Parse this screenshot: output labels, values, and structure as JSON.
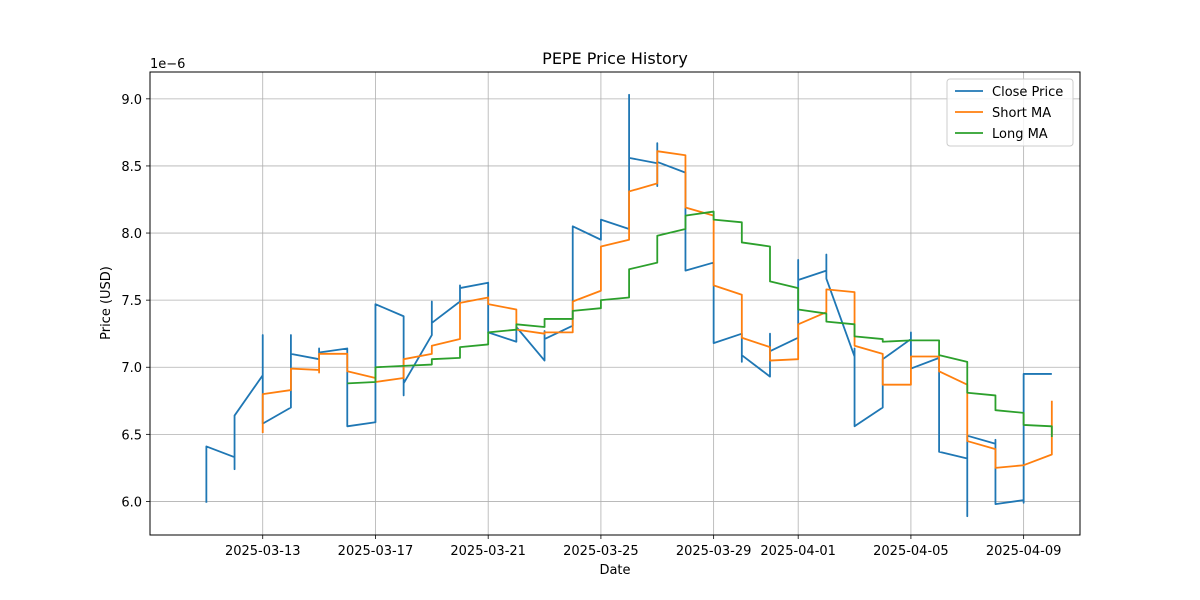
{
  "chart_data": {
    "type": "line",
    "title": "PEPE Price History",
    "xlabel": "Date",
    "ylabel": "Price (USD)",
    "y_scale_label": "1e−6",
    "xlim": [
      "2025-03-09",
      "2025-04-11"
    ],
    "ylim": [
      5.75,
      9.2
    ],
    "x_ticks": [
      "2025-03-13",
      "2025-03-17",
      "2025-03-21",
      "2025-03-25",
      "2025-03-29",
      "2025-04-01",
      "2025-04-05",
      "2025-04-09"
    ],
    "y_ticks": [
      6.0,
      6.5,
      7.0,
      7.5,
      8.0,
      8.5,
      9.0
    ],
    "y_tick_labels": [
      "6.0",
      "6.5",
      "7.0",
      "7.5",
      "8.0",
      "8.5",
      "9.0"
    ],
    "grid": true,
    "legend_position": "top-right",
    "series": [
      {
        "name": "Close Price",
        "color": "#1f77b4",
        "points": [
          [
            "2025-03-11",
            5.99
          ],
          [
            "2025-03-11",
            6.41
          ],
          [
            "2025-03-12",
            6.33
          ],
          [
            "2025-03-12",
            6.24
          ],
          [
            "2025-03-12",
            6.64
          ],
          [
            "2025-03-13",
            6.94
          ],
          [
            "2025-03-13",
            7.24
          ],
          [
            "2025-03-13",
            6.58
          ],
          [
            "2025-03-14",
            6.7
          ],
          [
            "2025-03-14",
            7.24
          ],
          [
            "2025-03-14",
            7.1
          ],
          [
            "2025-03-15",
            7.06
          ],
          [
            "2025-03-15",
            7.14
          ],
          [
            "2025-03-15",
            7.11
          ],
          [
            "2025-03-16",
            7.14
          ],
          [
            "2025-03-16",
            6.56
          ],
          [
            "2025-03-17",
            6.59
          ],
          [
            "2025-03-17",
            7.47
          ],
          [
            "2025-03-18",
            7.38
          ],
          [
            "2025-03-18",
            6.79
          ],
          [
            "2025-03-18",
            6.88
          ],
          [
            "2025-03-19",
            7.24
          ],
          [
            "2025-03-19",
            7.49
          ],
          [
            "2025-03-19",
            7.33
          ],
          [
            "2025-03-20",
            7.49
          ],
          [
            "2025-03-20",
            7.61
          ],
          [
            "2025-03-20",
            7.59
          ],
          [
            "2025-03-21",
            7.63
          ],
          [
            "2025-03-21",
            7.26
          ],
          [
            "2025-03-22",
            7.19
          ],
          [
            "2025-03-22",
            7.3
          ],
          [
            "2025-03-23",
            7.05
          ],
          [
            "2025-03-23",
            7.27
          ],
          [
            "2025-03-23",
            7.21
          ],
          [
            "2025-03-24",
            7.31
          ],
          [
            "2025-03-24",
            8.05
          ],
          [
            "2025-03-25",
            7.95
          ],
          [
            "2025-03-25",
            8.1
          ],
          [
            "2025-03-26",
            8.03
          ],
          [
            "2025-03-26",
            9.03
          ],
          [
            "2025-03-26",
            8.56
          ],
          [
            "2025-03-27",
            8.52
          ],
          [
            "2025-03-27",
            8.35
          ],
          [
            "2025-03-27",
            8.67
          ],
          [
            "2025-03-27",
            8.53
          ],
          [
            "2025-03-28",
            8.45
          ],
          [
            "2025-03-28",
            7.72
          ],
          [
            "2025-03-29",
            7.78
          ],
          [
            "2025-03-29",
            7.18
          ],
          [
            "2025-03-30",
            7.25
          ],
          [
            "2025-03-30",
            7.04
          ],
          [
            "2025-03-30",
            7.09
          ],
          [
            "2025-03-31",
            6.93
          ],
          [
            "2025-03-31",
            7.25
          ],
          [
            "2025-03-31",
            7.12
          ],
          [
            "2025-04-01",
            7.22
          ],
          [
            "2025-04-01",
            7.8
          ],
          [
            "2025-04-01",
            7.65
          ],
          [
            "2025-04-02",
            7.72
          ],
          [
            "2025-04-02",
            7.84
          ],
          [
            "2025-04-02",
            7.66
          ],
          [
            "2025-04-03",
            7.08
          ],
          [
            "2025-04-03",
            7.14
          ],
          [
            "2025-04-03",
            6.56
          ],
          [
            "2025-04-04",
            6.7
          ],
          [
            "2025-04-04",
            7.06
          ],
          [
            "2025-04-05",
            7.21
          ],
          [
            "2025-04-05",
            7.26
          ],
          [
            "2025-04-05",
            6.99
          ],
          [
            "2025-04-06",
            7.07
          ],
          [
            "2025-04-06",
            6.37
          ],
          [
            "2025-04-07",
            6.32
          ],
          [
            "2025-04-07",
            5.89
          ],
          [
            "2025-04-07",
            6.49
          ],
          [
            "2025-04-08",
            6.43
          ],
          [
            "2025-04-08",
            6.46
          ],
          [
            "2025-04-08",
            5.98
          ],
          [
            "2025-04-09",
            6.01
          ],
          [
            "2025-04-09",
            5.99
          ],
          [
            "2025-04-09",
            6.95
          ],
          [
            "2025-04-10",
            6.95
          ]
        ]
      },
      {
        "name": "Short MA",
        "color": "#ff7f0e",
        "points": [
          [
            "2025-03-13",
            6.51
          ],
          [
            "2025-03-13",
            6.8
          ],
          [
            "2025-03-14",
            6.83
          ],
          [
            "2025-03-14",
            6.99
          ],
          [
            "2025-03-15",
            6.98
          ],
          [
            "2025-03-15",
            6.96
          ],
          [
            "2025-03-15",
            7.1
          ],
          [
            "2025-03-16",
            7.1
          ],
          [
            "2025-03-16",
            6.97
          ],
          [
            "2025-03-17",
            6.92
          ],
          [
            "2025-03-17",
            6.89
          ],
          [
            "2025-03-18",
            6.92
          ],
          [
            "2025-03-18",
            7.06
          ],
          [
            "2025-03-19",
            7.1
          ],
          [
            "2025-03-19",
            7.16
          ],
          [
            "2025-03-20",
            7.21
          ],
          [
            "2025-03-20",
            7.48
          ],
          [
            "2025-03-21",
            7.52
          ],
          [
            "2025-03-21",
            7.47
          ],
          [
            "2025-03-22",
            7.43
          ],
          [
            "2025-03-22",
            7.28
          ],
          [
            "2025-03-23",
            7.25
          ],
          [
            "2025-03-23",
            7.26
          ],
          [
            "2025-03-24",
            7.26
          ],
          [
            "2025-03-24",
            7.49
          ],
          [
            "2025-03-25",
            7.57
          ],
          [
            "2025-03-25",
            7.9
          ],
          [
            "2025-03-26",
            7.95
          ],
          [
            "2025-03-26",
            8.31
          ],
          [
            "2025-03-27",
            8.37
          ],
          [
            "2025-03-27",
            8.61
          ],
          [
            "2025-03-28",
            8.58
          ],
          [
            "2025-03-28",
            8.19
          ],
          [
            "2025-03-29",
            8.13
          ],
          [
            "2025-03-29",
            7.61
          ],
          [
            "2025-03-30",
            7.54
          ],
          [
            "2025-03-30",
            7.22
          ],
          [
            "2025-03-31",
            7.15
          ],
          [
            "2025-03-31",
            7.05
          ],
          [
            "2025-04-01",
            7.06
          ],
          [
            "2025-04-01",
            7.32
          ],
          [
            "2025-04-02",
            7.41
          ],
          [
            "2025-04-02",
            7.58
          ],
          [
            "2025-04-03",
            7.56
          ],
          [
            "2025-04-03",
            7.16
          ],
          [
            "2025-04-04",
            7.1
          ],
          [
            "2025-04-04",
            6.87
          ],
          [
            "2025-04-05",
            6.87
          ],
          [
            "2025-04-05",
            7.08
          ],
          [
            "2025-04-06",
            7.08
          ],
          [
            "2025-04-06",
            6.97
          ],
          [
            "2025-04-07",
            6.87
          ],
          [
            "2025-04-07",
            6.45
          ],
          [
            "2025-04-08",
            6.39
          ],
          [
            "2025-04-08",
            6.25
          ],
          [
            "2025-04-09",
            6.27
          ],
          [
            "2025-04-09",
            6.27
          ],
          [
            "2025-04-10",
            6.35
          ],
          [
            "2025-04-10",
            6.75
          ]
        ]
      },
      {
        "name": "Long MA",
        "color": "#2ca02c",
        "points": [
          [
            "2025-03-16",
            6.88
          ],
          [
            "2025-03-17",
            6.89
          ],
          [
            "2025-03-17",
            7.0
          ],
          [
            "2025-03-18",
            7.01
          ],
          [
            "2025-03-19",
            7.02
          ],
          [
            "2025-03-19",
            7.06
          ],
          [
            "2025-03-20",
            7.07
          ],
          [
            "2025-03-20",
            7.15
          ],
          [
            "2025-03-21",
            7.17
          ],
          [
            "2025-03-21",
            7.26
          ],
          [
            "2025-03-22",
            7.28
          ],
          [
            "2025-03-22",
            7.32
          ],
          [
            "2025-03-23",
            7.3
          ],
          [
            "2025-03-23",
            7.36
          ],
          [
            "2025-03-24",
            7.36
          ],
          [
            "2025-03-24",
            7.42
          ],
          [
            "2025-03-25",
            7.44
          ],
          [
            "2025-03-25",
            7.5
          ],
          [
            "2025-03-26",
            7.52
          ],
          [
            "2025-03-26",
            7.73
          ],
          [
            "2025-03-27",
            7.78
          ],
          [
            "2025-03-27",
            7.98
          ],
          [
            "2025-03-28",
            8.03
          ],
          [
            "2025-03-28",
            8.13
          ],
          [
            "2025-03-29",
            8.16
          ],
          [
            "2025-03-29",
            8.1
          ],
          [
            "2025-03-30",
            8.08
          ],
          [
            "2025-03-30",
            7.93
          ],
          [
            "2025-03-31",
            7.9
          ],
          [
            "2025-03-31",
            7.64
          ],
          [
            "2025-04-01",
            7.59
          ],
          [
            "2025-04-01",
            7.43
          ],
          [
            "2025-04-02",
            7.4
          ],
          [
            "2025-04-02",
            7.34
          ],
          [
            "2025-04-03",
            7.32
          ],
          [
            "2025-04-03",
            7.23
          ],
          [
            "2025-04-04",
            7.21
          ],
          [
            "2025-04-04",
            7.19
          ],
          [
            "2025-04-05",
            7.2
          ],
          [
            "2025-04-05",
            7.2
          ],
          [
            "2025-04-06",
            7.2
          ],
          [
            "2025-04-06",
            7.09
          ],
          [
            "2025-04-07",
            7.04
          ],
          [
            "2025-04-07",
            6.81
          ],
          [
            "2025-04-08",
            6.79
          ],
          [
            "2025-04-08",
            6.68
          ],
          [
            "2025-04-09",
            6.66
          ],
          [
            "2025-04-09",
            6.57
          ],
          [
            "2025-04-10",
            6.56
          ],
          [
            "2025-04-10",
            6.48
          ]
        ]
      }
    ]
  }
}
